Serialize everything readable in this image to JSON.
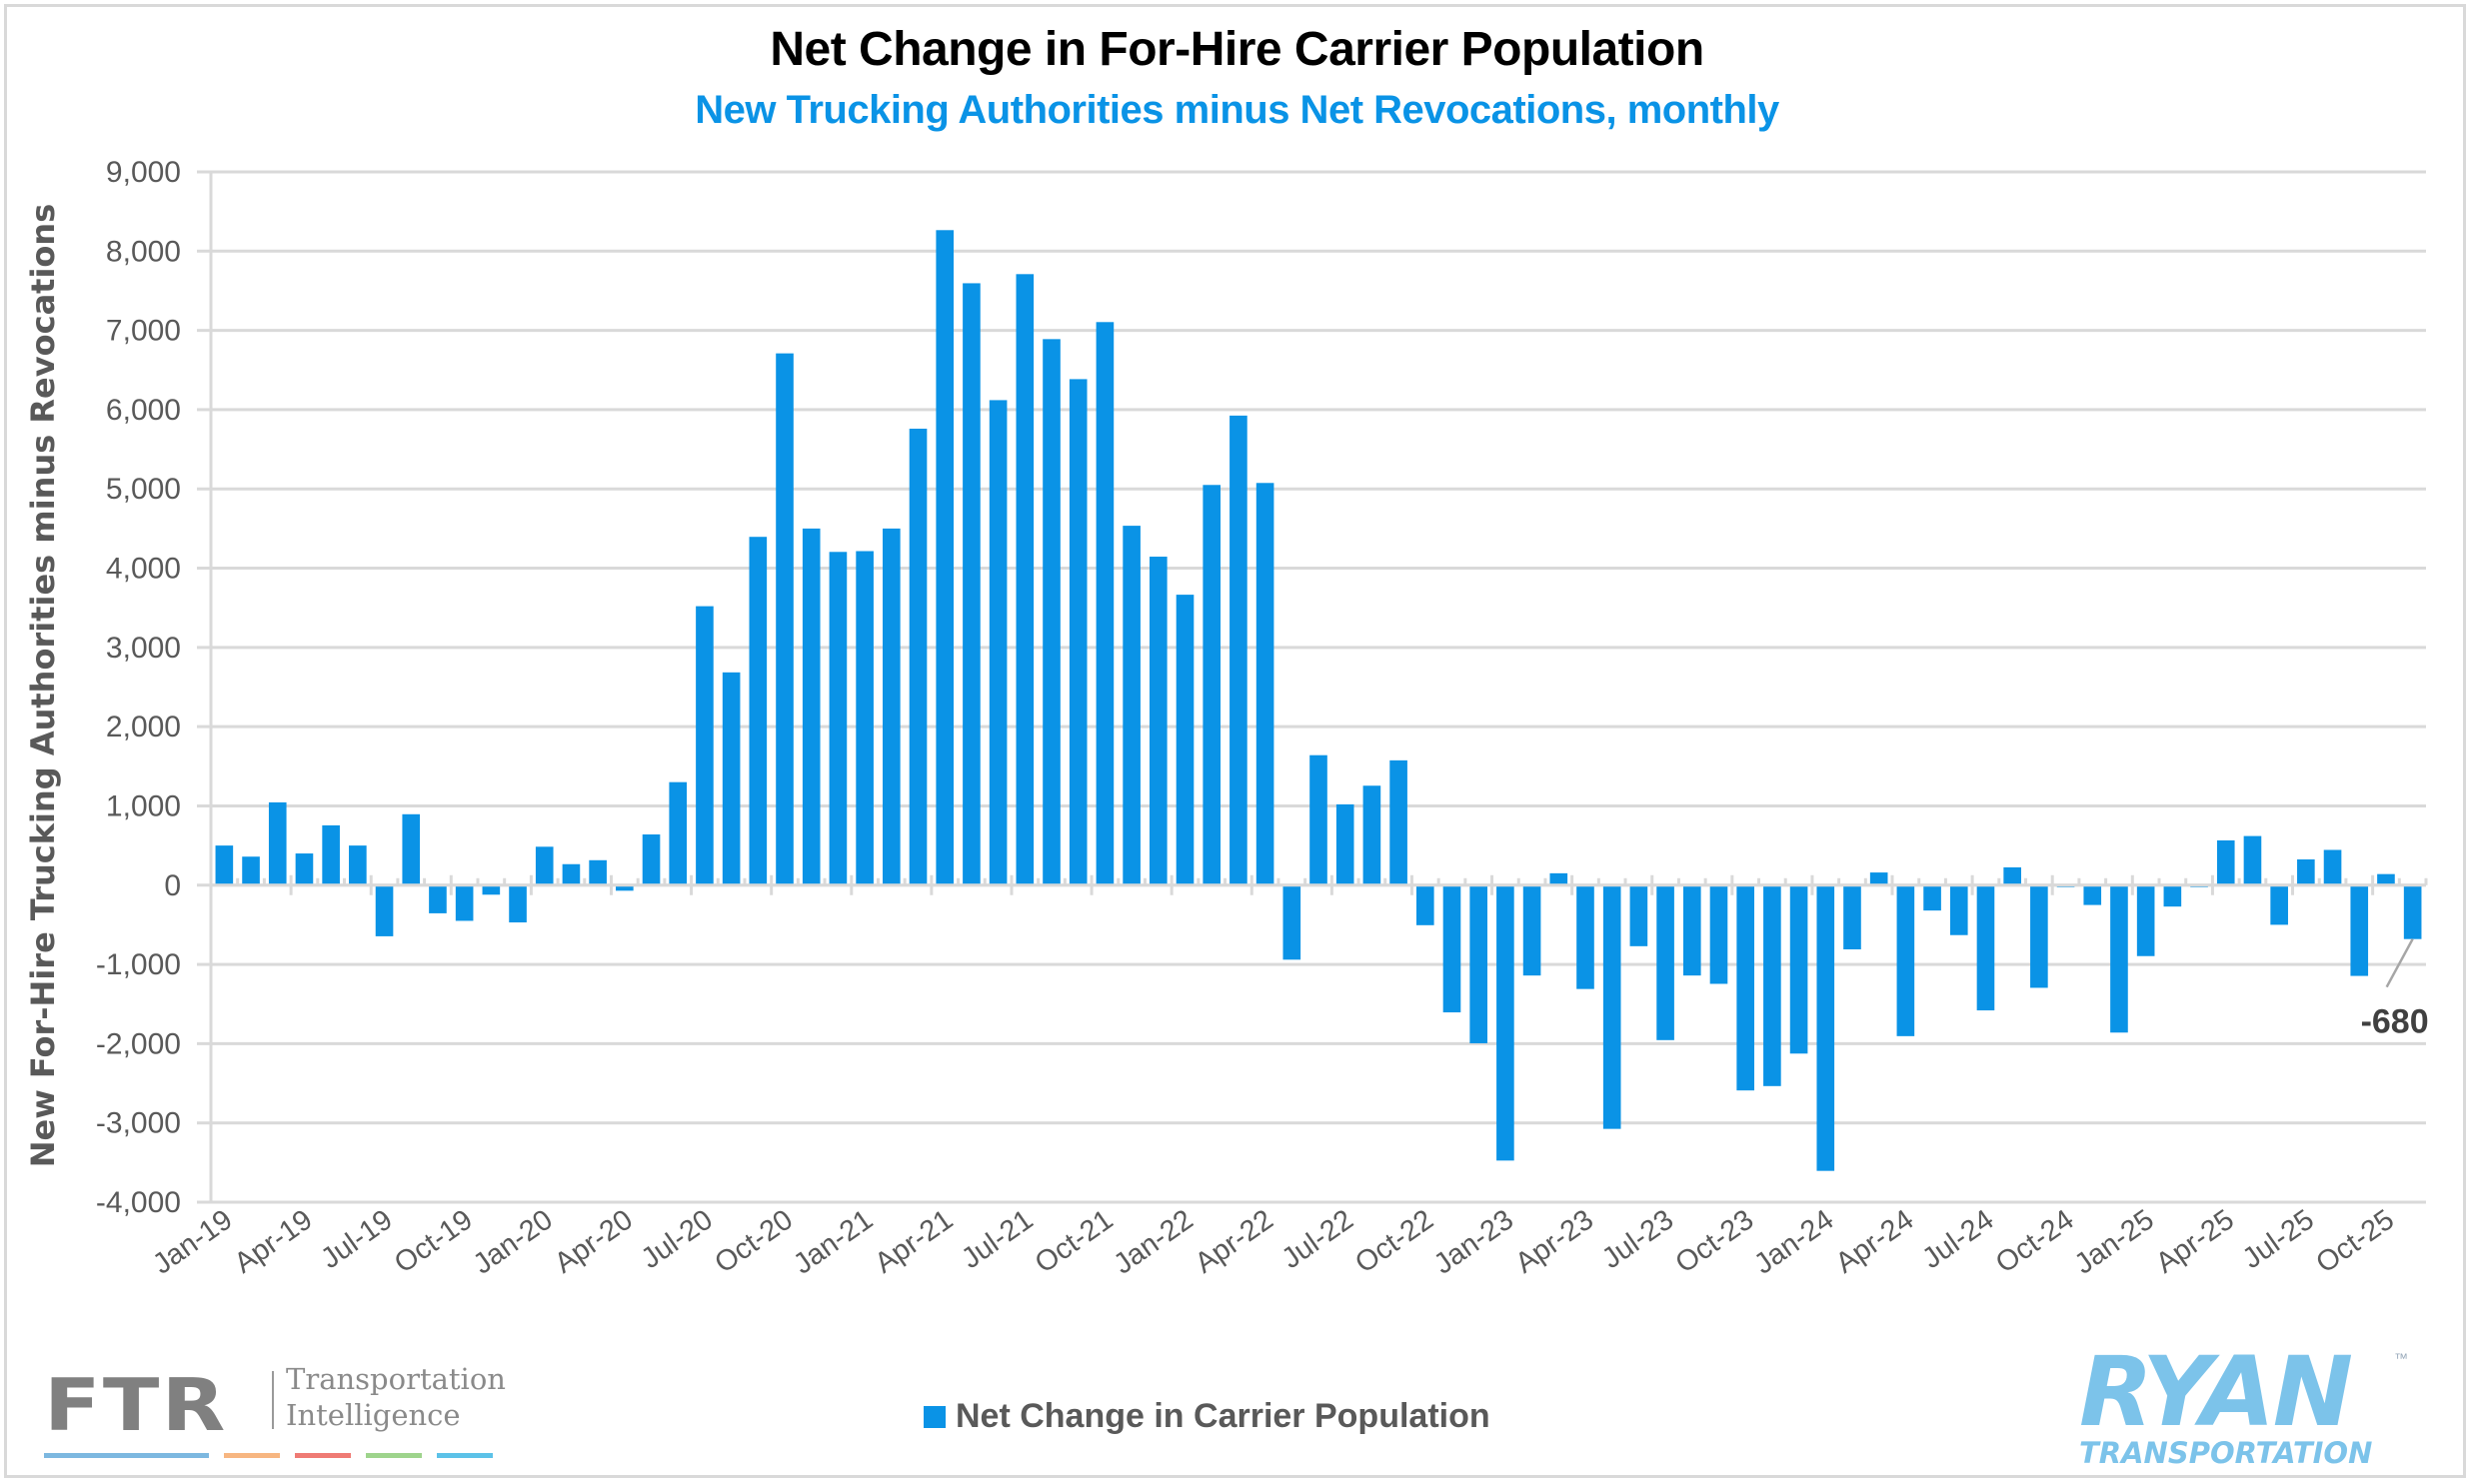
{
  "chart_data": {
    "type": "bar",
    "title": "Net Change in For-Hire Carrier Population",
    "subtitle": "New Trucking Authorities minus Net Revocations, monthly",
    "xlabel": "",
    "ylabel": "New For-Hire Trucking Authorities minus Revocations",
    "ylim": [
      -4000,
      9000
    ],
    "ytick_step": 1000,
    "yticks": [
      "9,000",
      "8,000",
      "7,000",
      "6,000",
      "5,000",
      "4,000",
      "3,000",
      "2,000",
      "1,000",
      "0",
      "-1,000",
      "-2,000",
      "-3,000",
      "-4,000"
    ],
    "grid": true,
    "legend_position": "bottom",
    "colors": {
      "bar": "#0a93e6",
      "grid": "#d9d9d9",
      "text": "#595959"
    },
    "categories": [
      "Jan-19",
      "Feb-19",
      "Mar-19",
      "Apr-19",
      "May-19",
      "Jun-19",
      "Jul-19",
      "Aug-19",
      "Sep-19",
      "Oct-19",
      "Nov-19",
      "Dec-19",
      "Jan-20",
      "Feb-20",
      "Mar-20",
      "Apr-20",
      "May-20",
      "Jun-20",
      "Jul-20",
      "Aug-20",
      "Sep-20",
      "Oct-20",
      "Nov-20",
      "Dec-20",
      "Jan-21",
      "Feb-21",
      "Mar-21",
      "Apr-21",
      "May-21",
      "Jun-21",
      "Jul-21",
      "Aug-21",
      "Sep-21",
      "Oct-21",
      "Nov-21",
      "Dec-21",
      "Jan-22",
      "Feb-22",
      "Mar-22",
      "Apr-22",
      "May-22",
      "Jun-22",
      "Jul-22",
      "Aug-22",
      "Sep-22",
      "Oct-22",
      "Nov-22",
      "Dec-22",
      "Jan-23",
      "Feb-23",
      "Mar-23",
      "Apr-23",
      "May-23",
      "Jun-23",
      "Jul-23",
      "Aug-23",
      "Sep-23",
      "Oct-23",
      "Nov-23",
      "Dec-23",
      "Jan-24",
      "Feb-24",
      "Mar-24",
      "Apr-24",
      "May-24",
      "Jun-24",
      "Jul-24",
      "Aug-24",
      "Sep-24",
      "Oct-24",
      "Nov-24",
      "Dec-24",
      "Jan-25",
      "Feb-25",
      "Mar-25",
      "Apr-25",
      "May-25",
      "Jun-25",
      "Jul-25",
      "Aug-25",
      "Sep-25",
      "Oct-25",
      "Nov-25"
    ],
    "x_tick_labels_shown": [
      "Jan-19",
      "Apr-19",
      "Jul-19",
      "Oct-19",
      "Jan-20",
      "Apr-20",
      "Jul-20",
      "Oct-20",
      "Jan-21",
      "Apr-21",
      "Jul-21",
      "Oct-21",
      "Jan-22",
      "Apr-22",
      "Jul-22",
      "Oct-22",
      "Jan-23",
      "Apr-23",
      "Jul-23",
      "Oct-23",
      "Jan-24",
      "Apr-24",
      "Jul-24",
      "Oct-24",
      "Jan-25",
      "Apr-25",
      "Jul-25",
      "Oct-25"
    ],
    "series": [
      {
        "name": "Net Change in Carrier Population",
        "values": [
          500,
          360,
          1045,
          400,
          755,
          500,
          -645,
          895,
          -355,
          -450,
          -120,
          -470,
          485,
          265,
          315,
          -70,
          640,
          1300,
          3520,
          2685,
          4395,
          6710,
          4500,
          4205,
          4215,
          4500,
          5760,
          8265,
          7595,
          6120,
          7710,
          6890,
          6385,
          7105,
          4535,
          4145,
          3665,
          5050,
          5925,
          5075,
          -940,
          1640,
          1020,
          1255,
          1575,
          -505,
          -1605,
          -1995,
          -3475,
          -1140,
          150,
          -1310,
          -3075,
          -770,
          -1955,
          -1140,
          -1245,
          -2590,
          -2535,
          -2125,
          -3605,
          -810,
          160,
          -1905,
          -320,
          -630,
          -1580,
          225,
          -1295,
          -25,
          -250,
          -1860,
          -895,
          -270,
          -25,
          565,
          620,
          -500,
          325,
          445,
          -1145,
          140,
          -680
        ]
      }
    ],
    "annotations": [
      {
        "category": "Nov-25",
        "text": "-680"
      }
    ]
  },
  "legend": {
    "label": "Net Change in Carrier Population"
  },
  "logos": {
    "ftr": {
      "mark": "FTR",
      "line1": "Transportation",
      "line2": "Intelligence",
      "bar_colors": [
        "#7db8e0",
        "#f7b681",
        "#ef7b74",
        "#9ed48c",
        "#5cc2e8"
      ]
    },
    "ryan": {
      "mark": "RYAN",
      "tm": "™",
      "sub": "TRANSPORTATION"
    }
  }
}
